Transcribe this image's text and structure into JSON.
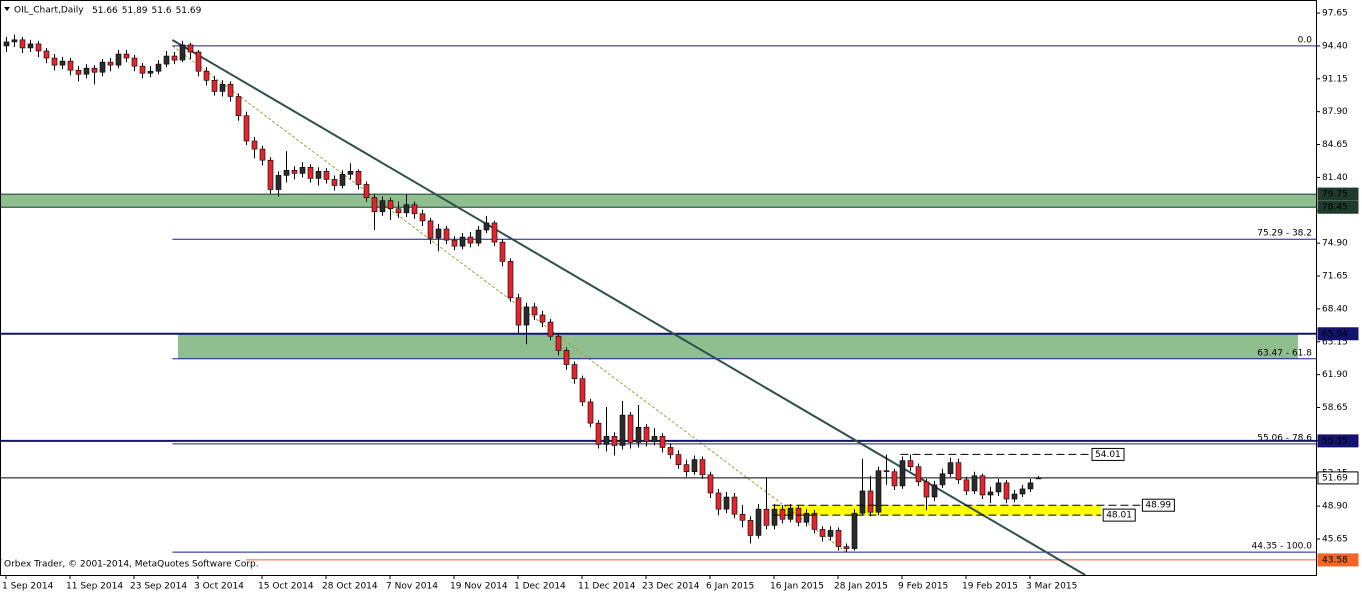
{
  "chart_data": {
    "type": "candlestick",
    "title": "OIL_Chart,Daily",
    "copyright": "Orbex Trader, © 2001-2014, MetaQuotes Software Corp.",
    "colors": {
      "up": "#2b2b2b",
      "down": "#e3262d",
      "wick": "#000000"
    },
    "candles": [
      [
        94.4,
        95.3,
        93.8,
        94.8
      ],
      [
        94.8,
        95.5,
        94.3,
        95.0
      ],
      [
        95.0,
        95.3,
        93.7,
        94.2
      ],
      [
        94.2,
        95.0,
        93.8,
        94.6
      ],
      [
        94.6,
        94.9,
        93.3,
        93.9
      ],
      [
        93.9,
        94.2,
        92.7,
        93.2
      ],
      [
        93.2,
        93.6,
        92.0,
        92.5
      ],
      [
        92.5,
        93.3,
        92.1,
        92.9
      ],
      [
        92.9,
        93.2,
        91.5,
        92.0
      ],
      [
        92.0,
        92.4,
        90.9,
        91.6
      ],
      [
        91.6,
        92.6,
        91.2,
        92.2
      ],
      [
        92.2,
        92.5,
        90.6,
        91.8
      ],
      [
        91.8,
        93.1,
        91.4,
        92.8
      ],
      [
        92.8,
        93.2,
        91.9,
        92.5
      ],
      [
        92.5,
        94.0,
        92.2,
        93.6
      ],
      [
        93.6,
        94.0,
        92.8,
        93.2
      ],
      [
        93.2,
        93.5,
        91.9,
        92.4
      ],
      [
        92.4,
        92.7,
        91.2,
        91.7
      ],
      [
        91.7,
        92.4,
        91.3,
        91.9
      ],
      [
        91.9,
        93.0,
        91.6,
        92.6
      ],
      [
        92.6,
        93.9,
        92.3,
        93.4
      ],
      [
        93.4,
        93.8,
        92.6,
        93.0
      ],
      [
        93.0,
        94.9,
        92.8,
        94.5
      ],
      [
        94.5,
        94.7,
        93.1,
        93.8
      ],
      [
        93.8,
        94.0,
        91.4,
        91.9
      ],
      [
        91.9,
        92.3,
        90.5,
        91.0
      ],
      [
        91.0,
        91.4,
        89.5,
        89.9
      ],
      [
        89.9,
        91.0,
        89.4,
        90.6
      ],
      [
        90.6,
        90.9,
        88.9,
        89.4
      ],
      [
        89.4,
        89.7,
        87.0,
        87.5
      ],
      [
        87.5,
        87.9,
        84.6,
        85.0
      ],
      [
        85.0,
        85.4,
        83.3,
        84.2
      ],
      [
        84.2,
        84.5,
        82.6,
        83.1
      ],
      [
        83.1,
        83.4,
        79.8,
        80.2
      ],
      [
        80.2,
        82.0,
        79.5,
        81.6
      ],
      [
        81.6,
        84.0,
        80.9,
        82.1
      ],
      [
        82.1,
        82.5,
        81.2,
        81.8
      ],
      [
        81.8,
        82.9,
        81.4,
        82.4
      ],
      [
        82.4,
        82.7,
        80.9,
        81.3
      ],
      [
        81.3,
        82.4,
        80.6,
        82.0
      ],
      [
        82.0,
        82.3,
        80.8,
        81.2
      ],
      [
        81.2,
        81.6,
        80.1,
        80.6
      ],
      [
        80.6,
        82.1,
        80.3,
        81.7
      ],
      [
        81.7,
        82.8,
        81.2,
        82.0
      ],
      [
        82.0,
        82.2,
        80.2,
        80.7
      ],
      [
        80.7,
        81.0,
        79.0,
        79.4
      ],
      [
        79.4,
        79.8,
        76.2,
        78.0
      ],
      [
        78.0,
        79.5,
        77.6,
        79.1
      ],
      [
        79.1,
        79.4,
        77.2,
        78.3
      ],
      [
        78.3,
        79.0,
        77.4,
        77.9
      ],
      [
        77.9,
        79.7,
        77.5,
        78.7
      ],
      [
        78.7,
        79.0,
        77.3,
        77.8
      ],
      [
        77.8,
        78.2,
        76.6,
        77.1
      ],
      [
        77.1,
        77.4,
        74.8,
        75.4
      ],
      [
        75.4,
        76.8,
        74.1,
        76.3
      ],
      [
        76.3,
        76.6,
        74.8,
        75.2
      ],
      [
        75.2,
        75.6,
        74.2,
        74.6
      ],
      [
        74.6,
        75.9,
        74.3,
        75.5
      ],
      [
        75.5,
        76.0,
        74.5,
        74.9
      ],
      [
        74.9,
        76.6,
        74.6,
        76.2
      ],
      [
        76.2,
        77.6,
        75.9,
        76.9
      ],
      [
        76.9,
        77.1,
        74.6,
        75.0
      ],
      [
        75.0,
        75.3,
        72.6,
        73.1
      ],
      [
        73.1,
        73.4,
        69.1,
        69.5
      ],
      [
        69.5,
        69.9,
        65.9,
        66.8
      ],
      [
        66.8,
        69.0,
        64.9,
        68.6
      ],
      [
        68.6,
        69.0,
        67.3,
        67.8
      ],
      [
        67.8,
        68.2,
        66.6,
        67.1
      ],
      [
        67.1,
        67.4,
        65.3,
        65.7
      ],
      [
        65.7,
        66.0,
        63.8,
        64.3
      ],
      [
        64.3,
        64.6,
        62.4,
        62.9
      ],
      [
        62.9,
        63.2,
        61.0,
        61.5
      ],
      [
        61.5,
        61.8,
        58.8,
        59.2
      ],
      [
        59.2,
        59.5,
        56.7,
        57.1
      ],
      [
        57.1,
        57.4,
        54.6,
        55.0
      ],
      [
        55.0,
        58.7,
        54.3,
        55.8
      ],
      [
        55.8,
        56.2,
        53.9,
        54.9
      ],
      [
        54.9,
        59.3,
        54.5,
        57.9
      ],
      [
        57.9,
        58.2,
        54.6,
        55.2
      ],
      [
        55.2,
        58.9,
        54.7,
        56.7
      ],
      [
        56.7,
        57.0,
        54.8,
        55.3
      ],
      [
        55.3,
        56.6,
        54.9,
        55.8
      ],
      [
        55.8,
        56.1,
        54.2,
        54.7
      ],
      [
        54.7,
        55.1,
        53.6,
        54.0
      ],
      [
        54.0,
        54.4,
        52.6,
        53.0
      ],
      [
        53.0,
        53.5,
        51.8,
        52.3
      ],
      [
        52.3,
        53.9,
        52.0,
        53.5
      ],
      [
        53.5,
        53.8,
        51.6,
        52.0
      ],
      [
        52.0,
        52.3,
        49.7,
        50.2
      ],
      [
        50.2,
        50.6,
        48.0,
        48.6
      ],
      [
        48.6,
        50.3,
        48.2,
        49.8
      ],
      [
        49.8,
        50.2,
        47.7,
        48.1
      ],
      [
        48.1,
        49.0,
        46.8,
        47.5
      ],
      [
        47.5,
        47.9,
        45.2,
        46.0
      ],
      [
        46.0,
        49.1,
        45.7,
        48.6
      ],
      [
        48.6,
        51.7,
        46.6,
        47.0
      ],
      [
        47.0,
        49.1,
        46.6,
        48.6
      ],
      [
        48.6,
        49.0,
        47.2,
        47.6
      ],
      [
        47.6,
        49.1,
        47.3,
        48.7
      ],
      [
        48.7,
        49.0,
        46.9,
        47.3
      ],
      [
        47.3,
        48.6,
        46.9,
        48.2
      ],
      [
        48.2,
        48.5,
        46.2,
        46.6
      ],
      [
        46.6,
        46.9,
        45.4,
        45.9
      ],
      [
        45.9,
        46.9,
        45.5,
        46.5
      ],
      [
        46.5,
        46.8,
        44.5,
        44.9
      ],
      [
        44.9,
        45.2,
        44.35,
        44.7
      ],
      [
        44.7,
        48.6,
        44.5,
        48.2
      ],
      [
        48.2,
        53.6,
        48.0,
        50.4
      ],
      [
        50.4,
        51.9,
        47.9,
        48.3
      ],
      [
        48.3,
        52.8,
        48.0,
        52.4
      ],
      [
        52.4,
        54.0,
        51.0,
        52.3
      ],
      [
        52.3,
        52.6,
        50.5,
        50.9
      ],
      [
        50.9,
        53.8,
        50.6,
        53.4
      ],
      [
        53.4,
        54.0,
        52.4,
        52.8
      ],
      [
        52.8,
        53.1,
        50.9,
        51.3
      ],
      [
        51.3,
        51.6,
        48.5,
        49.8
      ],
      [
        49.8,
        51.4,
        49.4,
        51.0
      ],
      [
        51.0,
        52.6,
        50.7,
        52.1
      ],
      [
        52.1,
        53.7,
        51.8,
        53.2
      ],
      [
        53.2,
        53.6,
        51.1,
        51.5
      ],
      [
        51.5,
        51.8,
        50.0,
        50.4
      ],
      [
        50.4,
        52.3,
        50.1,
        51.9
      ],
      [
        51.9,
        52.1,
        49.6,
        50.0
      ],
      [
        50.0,
        50.8,
        49.2,
        50.3
      ],
      [
        50.3,
        51.6,
        49.9,
        51.2
      ],
      [
        51.2,
        51.5,
        49.2,
        49.6
      ],
      [
        49.6,
        50.5,
        49.3,
        50.1
      ],
      [
        50.1,
        51.0,
        49.8,
        50.6
      ],
      [
        50.6,
        51.6,
        50.3,
        51.2
      ],
      [
        51.66,
        51.89,
        51.6,
        51.69
      ]
    ],
    "xlim": [
      -0.75,
      163.75
    ],
    "xticks": [
      {
        "value": 0,
        "label": "1 Sep 2014"
      },
      {
        "value": 8,
        "label": "11 Sep 2014"
      },
      {
        "value": 16,
        "label": "23 Sep 2014"
      },
      {
        "value": 24,
        "label": "3 Oct 2014"
      },
      {
        "value": 32,
        "label": "15 Oct 2014"
      },
      {
        "value": 40,
        "label": "28 Oct 2014"
      },
      {
        "value": 48,
        "label": "7 Nov 2014"
      },
      {
        "value": 56,
        "label": "19 Nov 2014"
      },
      {
        "value": 64,
        "label": "1 Dec 2014"
      },
      {
        "value": 72,
        "label": "11 Dec 2014"
      },
      {
        "value": 80,
        "label": "23 Dec 2014"
      },
      {
        "value": 88,
        "label": "6 Jan 2015"
      },
      {
        "value": 96,
        "label": "16 Jan 2015"
      },
      {
        "value": 104,
        "label": "28 Jan 2015"
      },
      {
        "value": 112,
        "label": "9 Feb 2015"
      },
      {
        "value": 120,
        "label": "19 Feb 2015"
      },
      {
        "value": 128,
        "label": "3 Mar 2015"
      }
    ],
    "ylim": [
      42.09,
      98.94
    ],
    "yticks": [
      97.65,
      {
        "value": 94.4,
        "label": "94.40"
      },
      91.15,
      {
        "value": 87.9,
        "label": "87.90"
      },
      84.65,
      {
        "value": 81.4,
        "label": "81.40"
      },
      78.15,
      {
        "value": 74.9,
        "label": "74.90"
      },
      71.65,
      {
        "value": 68.4,
        "label": "68.40"
      },
      65.15,
      {
        "value": 61.9,
        "label": "61.90"
      },
      58.65,
      {
        "value": 55.4,
        "label": "55.40"
      },
      52.15,
      {
        "value": 48.9,
        "label": "48.90"
      },
      45.65
    ],
    "zones": [
      {
        "from": 78.45,
        "to": 79.75,
        "color": "#8fbf8f"
      },
      {
        "from": 63.47,
        "to": 65.94,
        "start": 21.5,
        "end": 161.5,
        "color": "#8fbf8f"
      }
    ],
    "levels": [
      {
        "price": 79.75,
        "color": "#1e3b2c",
        "width": 1,
        "box": "#1e3b2c",
        "text_color": "#ffffff"
      },
      {
        "price": 78.45,
        "color": "#1e3b2c",
        "width": 1,
        "box": "#1e3b2c",
        "text_color": "#ffffff"
      },
      {
        "price": 65.94,
        "color": "#14146e",
        "width": 2,
        "box": "#14146e",
        "text_color": "#ffffff"
      },
      {
        "price": 55.35,
        "color": "#14146e",
        "width": 2,
        "box": "#14146e",
        "text_color": "#ffffff"
      },
      {
        "price": 51.69,
        "color": "#000000",
        "width": 1,
        "box": "#ffffff",
        "text_color": "#000000"
      },
      {
        "price": 43.58,
        "color": "#f26522",
        "width": 1,
        "box": "#f26522",
        "text_color": "#ffffff"
      }
    ],
    "fibonacci": {
      "start": 20.8,
      "color": "#1c1c94",
      "levels": [
        {
          "price": 94.41,
          "label": "0.0"
        },
        {
          "price": 75.29,
          "label": "75.29 - 38.2"
        },
        {
          "price": 63.47,
          "label": "63.47 - 61.8"
        },
        {
          "price": 55.06,
          "label": "55.06 - 78.6"
        },
        {
          "price": 44.35,
          "label": "44.35 - 100.0"
        }
      ],
      "diagonal": {
        "x": [
          20.8,
          105
        ],
        "y": [
          94.41,
          44.35
        ],
        "color": "#a3a33c"
      }
    },
    "trendline": {
      "x": [
        20.8,
        134.9
      ],
      "y": [
        94.99,
        42.09
      ],
      "color": "#2f4f4f"
    },
    "highlight": {
      "from": 48.01,
      "to": 48.99,
      "start": 95.8,
      "end": 136.9,
      "color": "#ffff00"
    },
    "marked_levels": [
      {
        "price": 54.01,
        "start": 111.8,
        "end": 135.5
      },
      {
        "price": 48.99,
        "start": 95.8,
        "end": 141.8
      },
      {
        "price": 48.01,
        "start": 95.8,
        "end": 136.9
      }
    ]
  }
}
